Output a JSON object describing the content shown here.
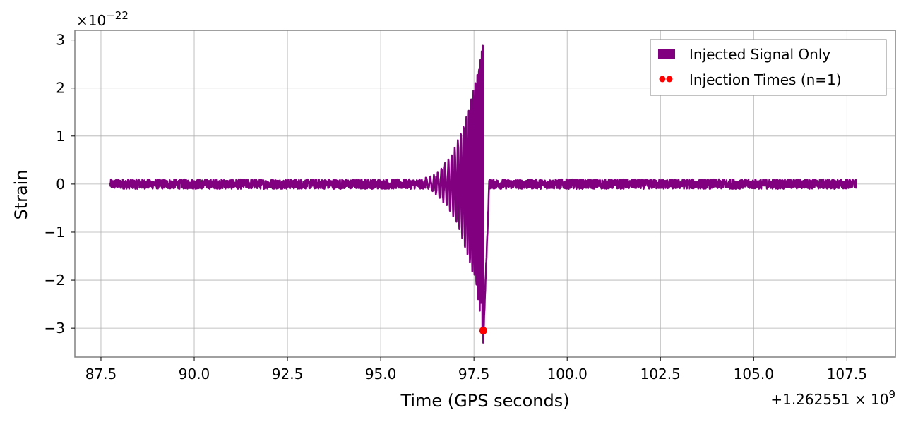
{
  "chart_data": {
    "type": "line",
    "title": "",
    "xlabel": "Time (GPS seconds)",
    "ylabel": "Strain",
    "x_offset_text": "+1.262551×10⁹",
    "x_offset_base": "+1.262551",
    "x_offset_exp": "9",
    "y_scale_text": "×10⁻²²",
    "y_scale_exp": "−22",
    "xlim": [
      86.8,
      108.8
    ],
    "ylim": [
      -3.6,
      3.2
    ],
    "xticks": [
      87.5,
      90.0,
      92.5,
      95.0,
      97.5,
      100.0,
      102.5,
      105.0,
      107.5
    ],
    "xtick_labels": [
      "87.5",
      "90.0",
      "92.5",
      "95.0",
      "97.5",
      "100.0",
      "102.5",
      "105.0",
      "107.5"
    ],
    "yticks": [
      -3,
      -2,
      -1,
      0,
      1,
      2,
      3
    ],
    "ytick_labels": [
      "−3",
      "−2",
      "−1",
      "0",
      "1",
      "2",
      "3"
    ],
    "grid": true,
    "legend_position": "top-right",
    "series": [
      {
        "name": "Injected Signal Only",
        "color": "#800080",
        "kind": "line",
        "x_range": [
          87.75,
          107.75
        ],
        "baseline_noise_amplitude": 0.1,
        "chirp_peak_time": 97.75,
        "peak_max": 2.88,
        "peak_min": -3.3,
        "envelope_points": [
          {
            "x": 96.2,
            "amp": 0.1
          },
          {
            "x": 96.5,
            "amp": 0.2
          },
          {
            "x": 96.8,
            "amp": 0.45
          },
          {
            "x": 97.0,
            "amp": 0.75
          },
          {
            "x": 97.2,
            "amp": 1.2
          },
          {
            "x": 97.4,
            "amp": 1.65
          },
          {
            "x": 97.55,
            "amp": 2.1
          },
          {
            "x": 97.7,
            "amp": 2.9
          },
          {
            "x": 97.75,
            "amp": 3.3
          },
          {
            "x": 97.9,
            "amp": 0.2
          }
        ]
      },
      {
        "name": "Injection Times (n=1)",
        "color": "#ff0000",
        "kind": "scatter",
        "points": [
          {
            "x": 97.75,
            "y": -3.05
          }
        ]
      }
    ]
  }
}
